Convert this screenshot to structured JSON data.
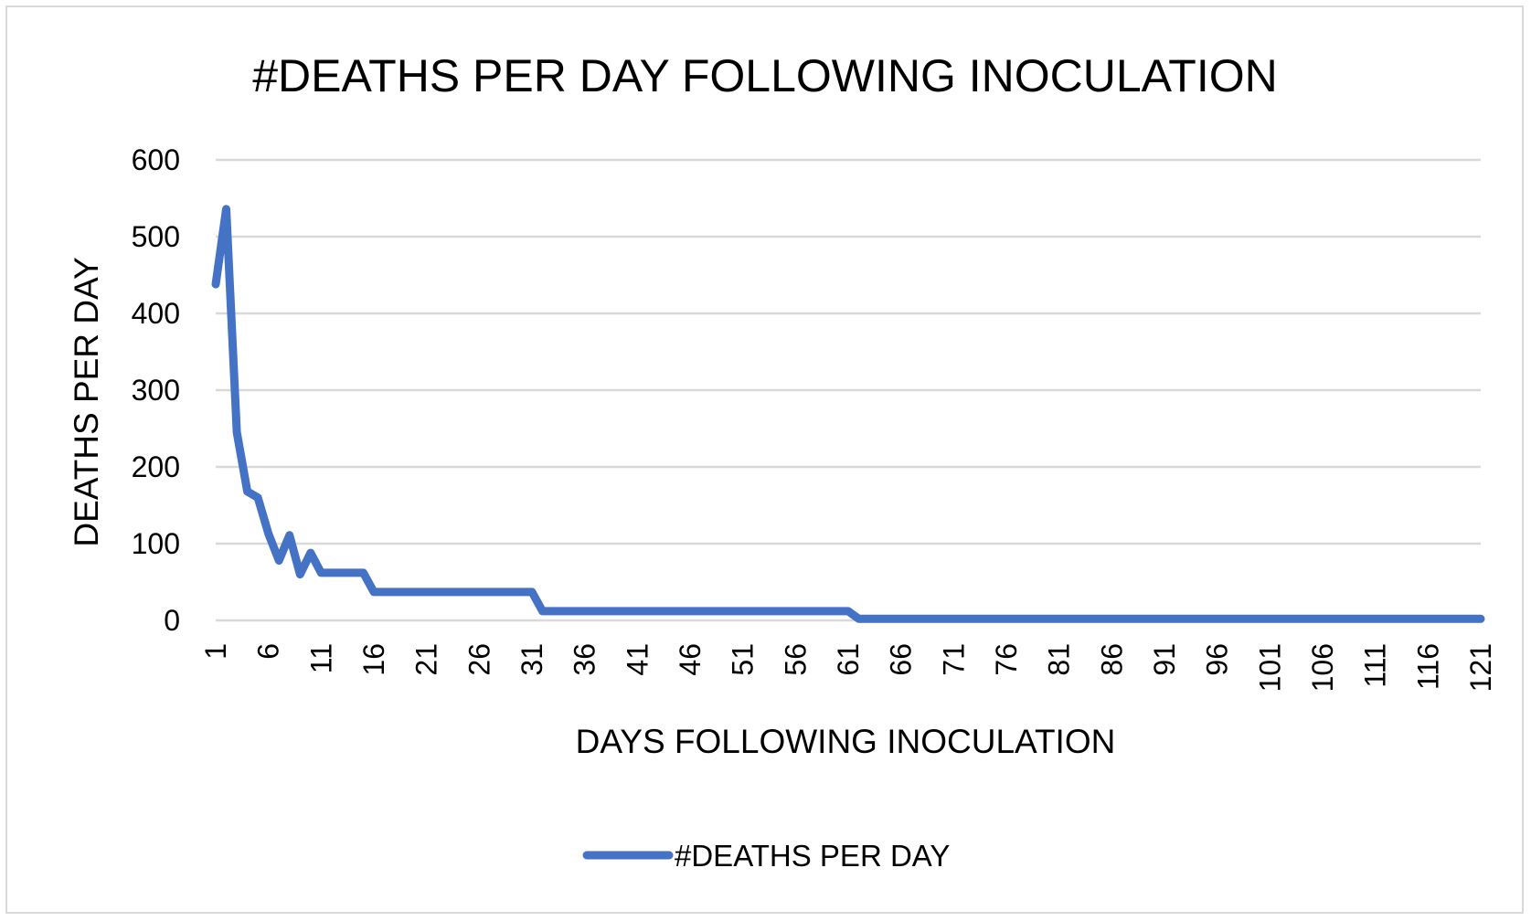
{
  "chart_data": {
    "type": "line",
    "title": "#DEATHS PER DAY FOLLOWING INOCULATION",
    "xlabel": "DAYS FOLLOWING INOCULATION",
    "ylabel": "DEATHS PER DAY",
    "ylim": [
      0,
      600
    ],
    "yticks": [
      "0",
      "100",
      "200",
      "300",
      "400",
      "500",
      "600"
    ],
    "x_range": [
      1,
      121
    ],
    "xticks": [
      "1",
      "6",
      "11",
      "16",
      "21",
      "26",
      "31",
      "36",
      "41",
      "46",
      "51",
      "56",
      "61",
      "66",
      "71",
      "76",
      "81",
      "86",
      "91",
      "96",
      "101",
      "106",
      "111",
      "116",
      "121"
    ],
    "grid": true,
    "legend_position": "bottom",
    "colors": {
      "series": "#4472c4",
      "grid": "#d9d9d9",
      "frame": "#d9d9d9"
    },
    "series": [
      {
        "name": "#DEATHS PER DAY",
        "x": [
          1,
          2,
          3,
          4,
          5,
          6,
          7,
          8,
          9,
          10,
          11,
          12,
          13,
          14,
          15,
          16,
          17,
          31,
          32,
          61,
          62,
          121
        ],
        "values": [
          438,
          536,
          245,
          168,
          160,
          113,
          78,
          111,
          60,
          88,
          62,
          62,
          62,
          62,
          62,
          37,
          37,
          37,
          12,
          12,
          2,
          2
        ]
      }
    ]
  }
}
